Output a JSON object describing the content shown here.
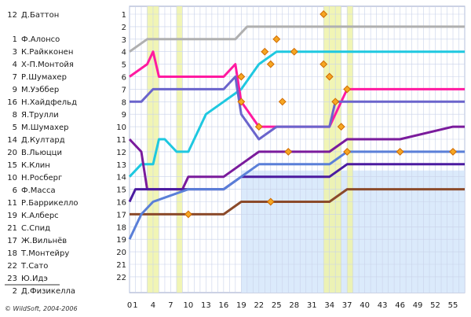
{
  "chart_data": {
    "type": "line",
    "x_ticks": [
      "0",
      "1",
      "4",
      "7",
      "10",
      "13",
      "16",
      "19",
      "22",
      "25",
      "28",
      "31",
      "34",
      "37",
      "40",
      "43",
      "46",
      "49",
      "52",
      "55"
    ],
    "y_ticks": [
      "1",
      "2",
      "3",
      "4",
      "5",
      "6",
      "7",
      "8",
      "9",
      "10",
      "11",
      "12",
      "13",
      "14",
      "15",
      "16",
      "17",
      "18",
      "19",
      "20",
      "21",
      "22"
    ],
    "xlim": [
      0,
      57
    ],
    "ylim": [
      1,
      22
    ],
    "grid": true,
    "yellow_bands_laps": [
      [
        3,
        5
      ],
      [
        8,
        9
      ],
      [
        33,
        36
      ],
      [
        37,
        38
      ]
    ],
    "drivers": [
      {
        "num": "12",
        "name": "Д.Баттон"
      },
      {
        "num": "1",
        "name": "Ф.Алонсо"
      },
      {
        "num": "3",
        "name": "К.Райкконен"
      },
      {
        "num": "4",
        "name": "Х-П.Монтойя"
      },
      {
        "num": "7",
        "name": "Р.Шумахер"
      },
      {
        "num": "9",
        "name": "М.Уэббер"
      },
      {
        "num": "16",
        "name": "Н.Хайдфельд"
      },
      {
        "num": "8",
        "name": "Я.Трулли"
      },
      {
        "num": "5",
        "name": "М.Шумахер"
      },
      {
        "num": "14",
        "name": "Д.Култард"
      },
      {
        "num": "20",
        "name": "В.Льюцци"
      },
      {
        "num": "15",
        "name": "К.Клин"
      },
      {
        "num": "10",
        "name": "Н.Росберг"
      },
      {
        "num": "6",
        "name": "Ф.Масса"
      },
      {
        "num": "11",
        "name": "Р.Баррикелло"
      },
      {
        "num": "19",
        "name": "К.Алберс"
      },
      {
        "num": "21",
        "name": "С.Спид"
      },
      {
        "num": "17",
        "name": "Ж.Вильнёв"
      },
      {
        "num": "18",
        "name": "Т.Монтейру"
      },
      {
        "num": "22",
        "name": "Т.Сато"
      },
      {
        "num": "23",
        "name": "Ю.Идэ"
      },
      {
        "num": "2",
        "name": "Д.Физикелла"
      }
    ],
    "series": [
      {
        "color": "#1ec8e0",
        "positions": [
          [
            0,
            14
          ],
          [
            2,
            13
          ],
          [
            4,
            13
          ],
          [
            5,
            11
          ],
          [
            6,
            11
          ],
          [
            8,
            12
          ],
          [
            10,
            12
          ],
          [
            13,
            9
          ],
          [
            16,
            8
          ],
          [
            19,
            7
          ],
          [
            22,
            5
          ],
          [
            25,
            4
          ],
          [
            28,
            4
          ],
          [
            31,
            4
          ],
          [
            34,
            4
          ],
          [
            37,
            4
          ],
          [
            40,
            4
          ],
          [
            43,
            4
          ],
          [
            46,
            4
          ],
          [
            49,
            4
          ],
          [
            52,
            4
          ],
          [
            55,
            4
          ],
          [
            57,
            4
          ]
        ]
      },
      {
        "color": "#ff1aa0",
        "positions": [
          [
            0,
            6
          ],
          [
            3,
            5
          ],
          [
            4,
            4
          ],
          [
            5,
            6
          ],
          [
            6,
            6
          ],
          [
            10,
            6
          ],
          [
            16,
            6
          ],
          [
            18,
            5
          ],
          [
            19,
            8
          ],
          [
            22,
            10
          ],
          [
            25,
            10
          ],
          [
            28,
            10
          ],
          [
            31,
            10
          ],
          [
            34,
            10
          ],
          [
            37,
            7
          ],
          [
            40,
            7
          ],
          [
            43,
            7
          ],
          [
            46,
            7
          ],
          [
            49,
            7
          ],
          [
            52,
            7
          ],
          [
            55,
            7
          ],
          [
            57,
            7
          ]
        ]
      },
      {
        "color": "#6a64cc",
        "positions": [
          [
            0,
            8
          ],
          [
            2,
            8
          ],
          [
            4,
            7
          ],
          [
            16,
            7
          ],
          [
            18,
            6
          ],
          [
            19,
            9
          ],
          [
            22,
            11
          ],
          [
            25,
            10
          ],
          [
            34,
            10
          ],
          [
            35,
            8
          ],
          [
            37,
            8
          ],
          [
            40,
            8
          ],
          [
            46,
            8
          ],
          [
            52,
            8
          ],
          [
            55,
            8
          ],
          [
            57,
            8
          ]
        ]
      },
      {
        "color": "#b0b0b0",
        "positions": [
          [
            0,
            4
          ],
          [
            3,
            3
          ],
          [
            10,
            3
          ],
          [
            16,
            3
          ],
          [
            18,
            3
          ],
          [
            20,
            2
          ],
          [
            22,
            2
          ],
          [
            25,
            2
          ],
          [
            34,
            2
          ],
          [
            37,
            2
          ],
          [
            40,
            2
          ],
          [
            46,
            2
          ],
          [
            55,
            2
          ],
          [
            57,
            2
          ]
        ]
      },
      {
        "color": "#7a1b9c",
        "positions": [
          [
            0,
            11
          ],
          [
            2,
            12
          ],
          [
            3,
            15
          ],
          [
            6,
            15
          ],
          [
            9,
            15
          ],
          [
            10,
            14
          ],
          [
            16,
            14
          ],
          [
            19,
            13
          ],
          [
            22,
            12
          ],
          [
            25,
            12
          ],
          [
            34,
            12
          ],
          [
            37,
            11
          ],
          [
            40,
            11
          ],
          [
            46,
            11
          ],
          [
            55,
            10
          ],
          [
            57,
            10
          ]
        ]
      },
      {
        "color": "#4b1ba0",
        "positions": [
          [
            0,
            16
          ],
          [
            1,
            15
          ],
          [
            3,
            15
          ],
          [
            6,
            15
          ],
          [
            10,
            15
          ],
          [
            16,
            15
          ],
          [
            19,
            14
          ],
          [
            22,
            14
          ],
          [
            25,
            14
          ],
          [
            34,
            14
          ],
          [
            37,
            13
          ],
          [
            40,
            13
          ],
          [
            46,
            13
          ],
          [
            55,
            13
          ],
          [
            57,
            13
          ]
        ]
      },
      {
        "color": "#8b4a2a",
        "positions": [
          [
            0,
            17
          ],
          [
            2,
            17
          ],
          [
            4,
            17
          ],
          [
            6,
            17
          ],
          [
            10,
            17
          ],
          [
            16,
            17
          ],
          [
            19,
            16
          ],
          [
            22,
            16
          ],
          [
            25,
            16
          ],
          [
            34,
            16
          ],
          [
            37,
            15
          ],
          [
            40,
            15
          ],
          [
            46,
            15
          ],
          [
            55,
            15
          ],
          [
            57,
            15
          ]
        ]
      },
      {
        "color": "#5a7fd8",
        "positions": [
          [
            0,
            19
          ],
          [
            2,
            17
          ],
          [
            4,
            16
          ],
          [
            10,
            15
          ],
          [
            16,
            15
          ],
          [
            19,
            14
          ],
          [
            22,
            13
          ],
          [
            25,
            13
          ],
          [
            34,
            13
          ],
          [
            37,
            12
          ],
          [
            40,
            12
          ],
          [
            46,
            12
          ],
          [
            55,
            12
          ],
          [
            57,
            12
          ]
        ]
      }
    ],
    "pit_markers_laps": [
      [
        19,
        6
      ],
      [
        19,
        8
      ],
      [
        22,
        10
      ],
      [
        23,
        4
      ],
      [
        24,
        5
      ],
      [
        25,
        3
      ],
      [
        26,
        8
      ],
      [
        28,
        4
      ],
      [
        33,
        1
      ],
      [
        33,
        5
      ],
      [
        34,
        6
      ],
      [
        35,
        8
      ],
      [
        36,
        10
      ],
      [
        37,
        7
      ],
      [
        37,
        12
      ],
      [
        46,
        12
      ],
      [
        55,
        12
      ],
      [
        24,
        16
      ],
      [
        27,
        12
      ],
      [
        10,
        17
      ]
    ]
  },
  "footer": {
    "copyright": "© WildSoft, 2004-2006"
  }
}
